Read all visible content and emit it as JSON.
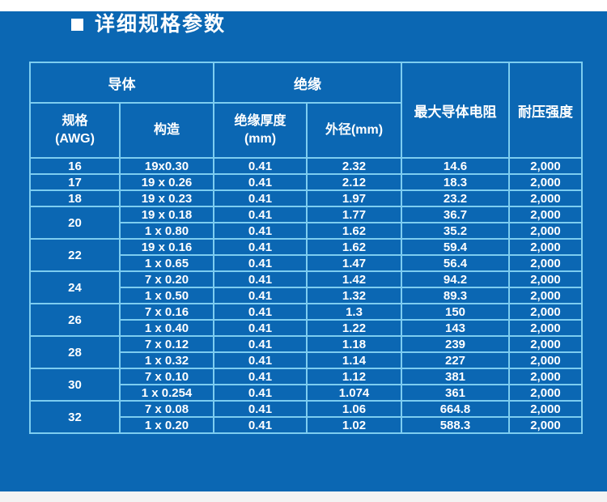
{
  "page": {
    "background_color": "#0b67b3",
    "border_color": "#7dcdf0",
    "text_color": "#ffffff"
  },
  "title": {
    "bullet": "square",
    "text": "详细规格参数"
  },
  "table": {
    "group_headers": {
      "conductor": "导体",
      "insulation": "绝缘",
      "max_resistance": "最大导体电阻",
      "voltage": "耐压强度"
    },
    "sub_headers": {
      "spec_awg": "规格\n(AWG)",
      "construction": "构造",
      "insulation_thickness": "绝缘厚度\n(mm)",
      "outer_diameter": "外径(mm)"
    },
    "groups": [
      {
        "awg": "16",
        "rows": [
          [
            "19x0.30",
            "0.41",
            "2.32",
            "14.6",
            "2,000"
          ]
        ]
      },
      {
        "awg": "17",
        "rows": [
          [
            "19 x 0.26",
            "0.41",
            "2.12",
            "18.3",
            "2,000"
          ]
        ]
      },
      {
        "awg": "18",
        "rows": [
          [
            "19 x 0.23",
            "0.41",
            "1.97",
            "23.2",
            "2,000"
          ]
        ]
      },
      {
        "awg": "20",
        "rows": [
          [
            "19 x 0.18",
            "0.41",
            "1.77",
            "36.7",
            "2,000"
          ],
          [
            "1 x 0.80",
            "0.41",
            "1.62",
            "35.2",
            "2,000"
          ]
        ]
      },
      {
        "awg": "22",
        "rows": [
          [
            "19 x 0.16",
            "0.41",
            "1.62",
            "59.4",
            "2,000"
          ],
          [
            "1 x 0.65",
            "0.41",
            "1.47",
            "56.4",
            "2,000"
          ]
        ]
      },
      {
        "awg": "24",
        "rows": [
          [
            "7 x 0.20",
            "0.41",
            "1.42",
            "94.2",
            "2,000"
          ],
          [
            "1 x 0.50",
            "0.41",
            "1.32",
            "89.3",
            "2,000"
          ]
        ]
      },
      {
        "awg": "26",
        "rows": [
          [
            "7 x 0.16",
            "0.41",
            "1.3",
            "150",
            "2,000"
          ],
          [
            "1 x 0.40",
            "0.41",
            "1.22",
            "143",
            "2,000"
          ]
        ]
      },
      {
        "awg": "28",
        "rows": [
          [
            "7 x 0.12",
            "0.41",
            "1.18",
            "239",
            "2,000"
          ],
          [
            "1 x 0.32",
            "0.41",
            "1.14",
            "227",
            "2,000"
          ]
        ]
      },
      {
        "awg": "30",
        "rows": [
          [
            "7 x 0.10",
            "0.41",
            "1.12",
            "381",
            "2,000"
          ],
          [
            "1 x 0.254",
            "0.41",
            "1.074",
            "361",
            "2,000"
          ]
        ]
      },
      {
        "awg": "32",
        "rows": [
          [
            "7 x 0.08",
            "0.41",
            "1.06",
            "664.8",
            "2,000"
          ],
          [
            "1 x 0.20",
            "0.41",
            "1.02",
            "588.3",
            "2,000"
          ]
        ]
      }
    ]
  }
}
